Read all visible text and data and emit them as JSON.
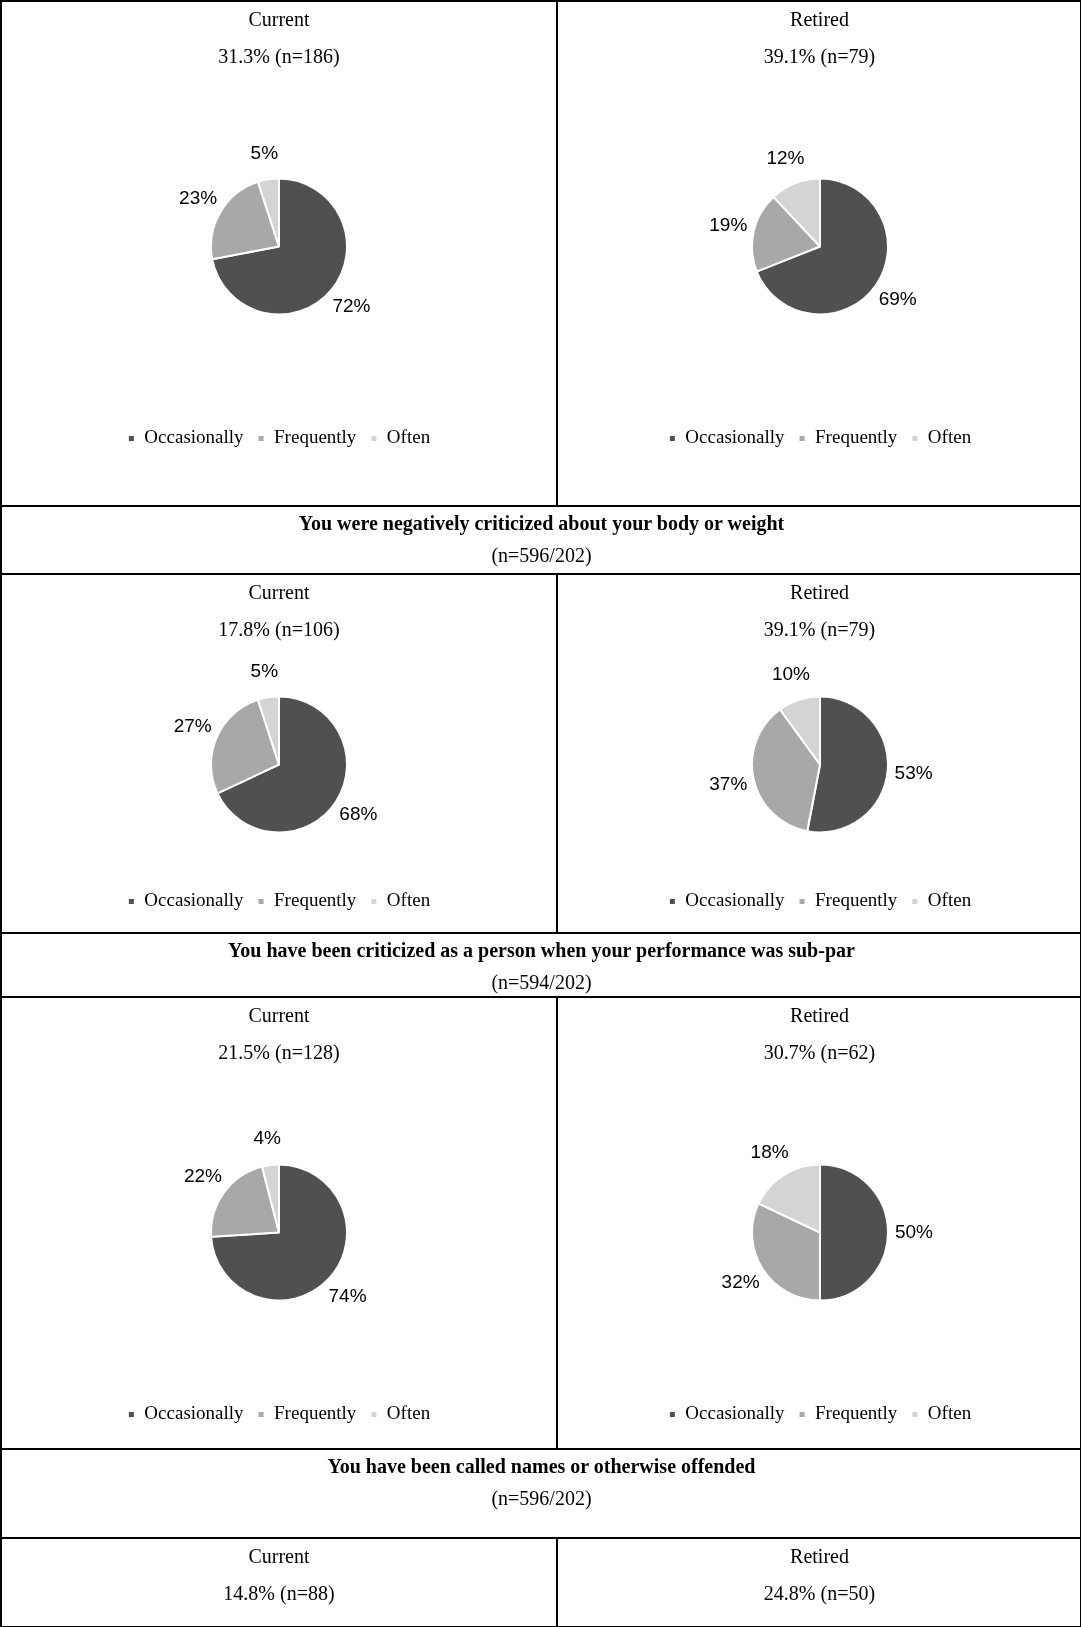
{
  "chart_data": [
    {
      "type": "pie",
      "title": "Current",
      "subtitle": "31.3% (n=186)",
      "categories": [
        "Occasionally",
        "Frequently",
        "Often"
      ],
      "values": [
        72,
        23,
        5
      ],
      "value_labels": [
        "72%",
        "23%",
        "5%"
      ],
      "colors": [
        "#505050",
        "#a8a8a8",
        "#d4d4d4"
      ],
      "legend": "bottom"
    },
    {
      "type": "pie",
      "title": "Retired",
      "subtitle": "39.1% (n=79)",
      "categories": [
        "Occasionally",
        "Frequently",
        "Often"
      ],
      "values": [
        69,
        19,
        12
      ],
      "value_labels": [
        "69%",
        "19%",
        "12%"
      ],
      "colors": [
        "#505050",
        "#a8a8a8",
        "#d4d4d4"
      ],
      "legend": "bottom"
    },
    {
      "type": "other",
      "title": "You were negatively criticized about your body or weight",
      "subtitle": "(n=596/202)"
    },
    {
      "type": "pie",
      "title": "Current",
      "subtitle": "17.8% (n=106)",
      "categories": [
        "Occasionally",
        "Frequently",
        "Often"
      ],
      "values": [
        68,
        27,
        5
      ],
      "value_labels": [
        "68%",
        "27%",
        "5%"
      ],
      "colors": [
        "#505050",
        "#a8a8a8",
        "#d4d4d4"
      ],
      "legend": "bottom"
    },
    {
      "type": "pie",
      "title": "Retired",
      "subtitle": "39.1% (n=79)",
      "categories": [
        "Occasionally",
        "Frequently",
        "Often"
      ],
      "values": [
        53,
        37,
        10
      ],
      "value_labels": [
        "53%",
        "37%",
        "10%"
      ],
      "colors": [
        "#505050",
        "#a8a8a8",
        "#d4d4d4"
      ],
      "legend": "bottom"
    },
    {
      "type": "other",
      "title": "You have been criticized as a person when your performance was sub-par",
      "subtitle": "(n=594/202)"
    },
    {
      "type": "pie",
      "title": "Current",
      "subtitle": "21.5% (n=128)",
      "categories": [
        "Occasionally",
        "Frequently",
        "Often"
      ],
      "values": [
        74,
        22,
        4
      ],
      "value_labels": [
        "74%",
        "22%",
        "4%"
      ],
      "colors": [
        "#505050",
        "#a8a8a8",
        "#d4d4d4"
      ],
      "legend": "bottom"
    },
    {
      "type": "pie",
      "title": "Retired",
      "subtitle": "30.7% (n=62)",
      "categories": [
        "Occasionally",
        "Frequently",
        "Often"
      ],
      "values": [
        50,
        32,
        18
      ],
      "value_labels": [
        "50%",
        "32%",
        "18%"
      ],
      "colors": [
        "#505050",
        "#a8a8a8",
        "#d4d4d4"
      ],
      "legend": "bottom"
    },
    {
      "type": "other",
      "title": "You have been called names or otherwise offended",
      "subtitle": "(n=596/202)"
    },
    {
      "type": "other",
      "title": "Current",
      "subtitle": "14.8% (n=88)"
    },
    {
      "type": "other",
      "title": "Retired",
      "subtitle": "24.8% (n=50)"
    }
  ]
}
